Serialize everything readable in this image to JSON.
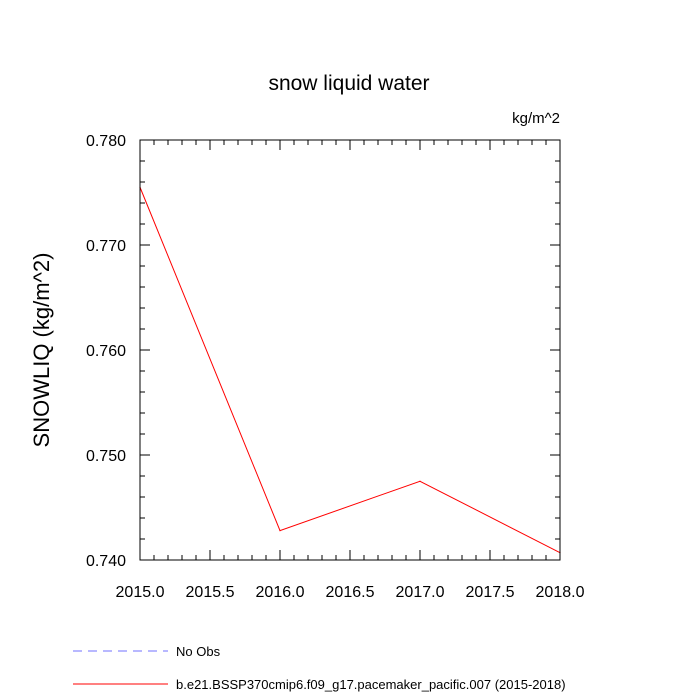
{
  "chart_data": {
    "type": "line",
    "title": "snow liquid water",
    "units": "kg/m^2",
    "xlabel": "",
    "ylabel": "SNOWLIQ  (kg/m^2)",
    "xlim": [
      2015.0,
      2018.0
    ],
    "ylim": [
      0.74,
      0.78
    ],
    "x_ticks": [
      "2015.0",
      "2015.5",
      "2016.0",
      "2016.5",
      "2017.0",
      "2017.5",
      "2018.0"
    ],
    "y_ticks": [
      "0.740",
      "0.750",
      "0.760",
      "0.770",
      "0.780"
    ],
    "grid": false,
    "legend_position": "bottom-left",
    "series": [
      {
        "name": "No Obs",
        "color": "#7070ff",
        "style": "dashed",
        "x": [],
        "y": []
      },
      {
        "name": "b.e21.BSSP370cmip6.f09_g17.pacemaker_pacific.007 (2015-2018)",
        "color": "#ff0000",
        "style": "solid",
        "x": [
          2015,
          2016,
          2017,
          2018
        ],
        "y": [
          0.7755,
          0.7428,
          0.7475,
          0.7407
        ]
      }
    ]
  }
}
